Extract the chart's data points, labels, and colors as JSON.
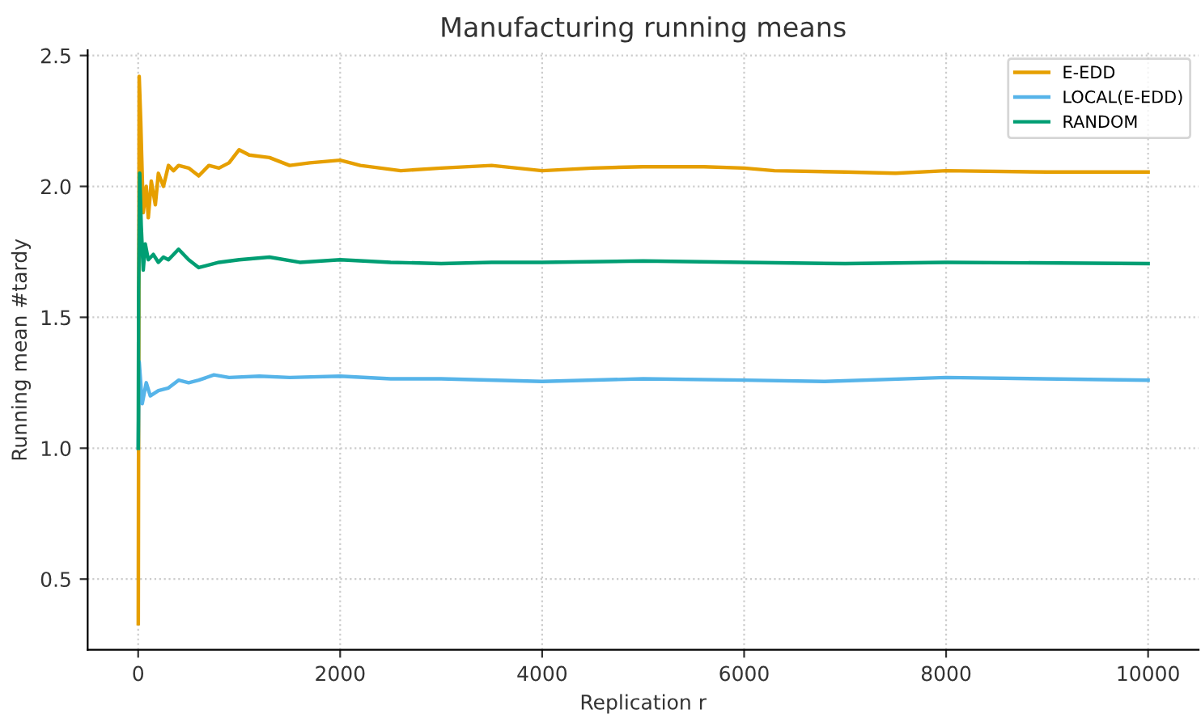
{
  "chart_data": {
    "type": "line",
    "title": "Manufacturing running means",
    "xlabel": "Replication r",
    "ylabel": "Running mean #tardy",
    "xlim": [
      -500,
      10500
    ],
    "xticks": [
      0,
      2000,
      4000,
      6000,
      8000,
      10000
    ],
    "ylim": [
      0.23,
      2.52
    ],
    "yticks": [
      0.5,
      {
        "value": 1,
        "label": "1.0"
      },
      1.5,
      {
        "value": 2,
        "label": "2.0"
      },
      2.5
    ],
    "grid": true,
    "legend": "top right",
    "line_style": "solid",
    "marker": "none",
    "series": [
      {
        "name": "E-EDD",
        "color": "#e69f00",
        "x": [
          1,
          10,
          25,
          50,
          80,
          100,
          130,
          170,
          200,
          250,
          300,
          350,
          400,
          500,
          600,
          700,
          800,
          900,
          1000,
          1100,
          1300,
          1500,
          1700,
          2000,
          2200,
          2600,
          3000,
          3500,
          4000,
          4500,
          5000,
          5600,
          6000,
          6300,
          7000,
          7500,
          8000,
          9000,
          10000
        ],
        "values": [
          0.33,
          2.42,
          2.25,
          1.9,
          2.0,
          1.88,
          2.02,
          1.93,
          2.05,
          2.0,
          2.08,
          2.06,
          2.08,
          2.07,
          2.04,
          2.08,
          2.07,
          2.09,
          2.14,
          2.12,
          2.11,
          2.08,
          2.09,
          2.1,
          2.08,
          2.06,
          2.07,
          2.08,
          2.06,
          2.07,
          2.075,
          2.075,
          2.07,
          2.06,
          2.055,
          2.05,
          2.06,
          2.055,
          2.055
        ]
      },
      {
        "name": "LOCAL(E-EDD)",
        "color": "#56b4e9",
        "x": [
          1,
          10,
          40,
          80,
          120,
          200,
          300,
          400,
          500,
          600,
          750,
          900,
          1200,
          1500,
          2000,
          2500,
          3000,
          4000,
          5000,
          6000,
          6800,
          8000,
          10000
        ],
        "values": [
          1.0,
          1.33,
          1.17,
          1.25,
          1.2,
          1.22,
          1.23,
          1.26,
          1.25,
          1.26,
          1.28,
          1.27,
          1.275,
          1.27,
          1.275,
          1.265,
          1.265,
          1.255,
          1.265,
          1.26,
          1.255,
          1.27,
          1.26
        ]
      },
      {
        "name": "RANDOM",
        "color": "#009e73",
        "x": [
          1,
          5,
          15,
          30,
          50,
          70,
          100,
          150,
          200,
          250,
          300,
          400,
          500,
          600,
          800,
          1000,
          1300,
          1600,
          2000,
          2500,
          3000,
          3500,
          4000,
          5000,
          6000,
          7000,
          8000,
          10000
        ],
        "values": [
          1.0,
          1.6,
          2.05,
          1.85,
          1.68,
          1.78,
          1.72,
          1.74,
          1.71,
          1.73,
          1.72,
          1.76,
          1.72,
          1.69,
          1.71,
          1.72,
          1.73,
          1.71,
          1.72,
          1.71,
          1.705,
          1.71,
          1.71,
          1.715,
          1.71,
          1.705,
          1.71,
          1.705
        ]
      }
    ]
  }
}
